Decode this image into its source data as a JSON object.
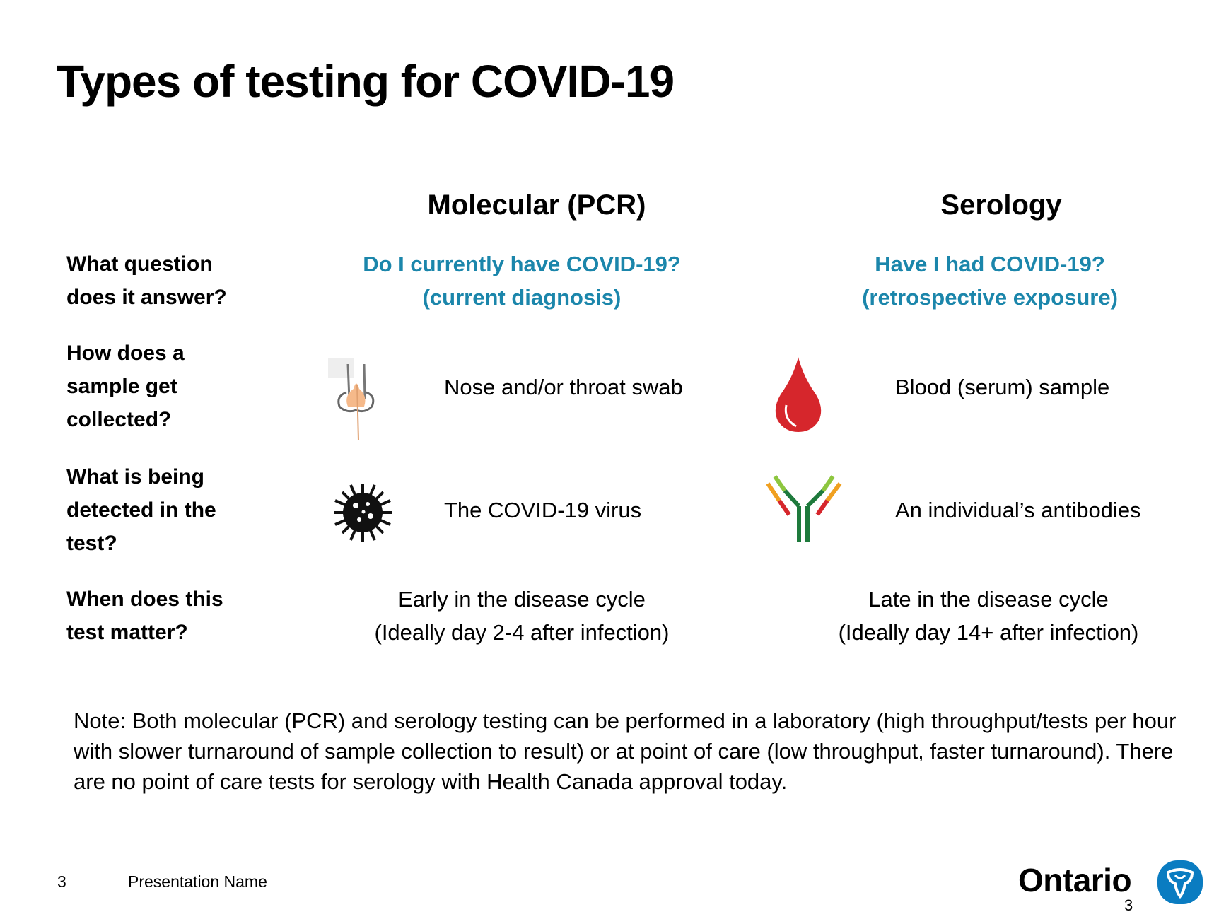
{
  "slide": {
    "title": "Types of testing for COVID-19",
    "columns": [
      "Molecular (PCR)",
      "Serology"
    ],
    "rows": [
      {
        "label": [
          "What question",
          "does it answer?"
        ],
        "pcr": [
          "Do I currently have COVID-19?",
          "(current diagnosis)"
        ],
        "serology": [
          "Have I had COVID-19?",
          "(retrospective exposure)"
        ]
      },
      {
        "label": [
          "How does a",
          "sample get",
          "collected?"
        ],
        "pcr_icon": "nose-swab-icon",
        "pcr": "Nose and/or throat swab",
        "serology_icon": "blood-drop-icon",
        "serology": "Blood (serum) sample"
      },
      {
        "label": [
          "What is being",
          "detected in the",
          "test?"
        ],
        "pcr_icon": "virus-icon",
        "pcr": "The COVID-19 virus",
        "serology_icon": "antibody-icon",
        "serology": "An individual’s antibodies"
      },
      {
        "label": [
          "When does this",
          "test matter?"
        ],
        "pcr": [
          "Early in the disease cycle",
          "(Ideally day 2-4 after infection)"
        ],
        "serology": [
          "Late in the disease cycle",
          "(Ideally day 14+ after infection)"
        ]
      }
    ],
    "note": "Note: Both molecular (PCR) and serology testing can be performed in a laboratory (high throughput/tests per hour with slower turnaround of sample collection to result) or at point of care (low throughput, faster turnaround). There are no point of care tests for serology with Health Canada approval today."
  },
  "footer": {
    "slide_number": "3",
    "presentation_name": "Presentation Name",
    "brand": "Ontario",
    "page_number": "3"
  },
  "colors": {
    "accent": "#1b86ab",
    "logo_blue": "#0a7cc1",
    "blood": "#d6262c"
  }
}
